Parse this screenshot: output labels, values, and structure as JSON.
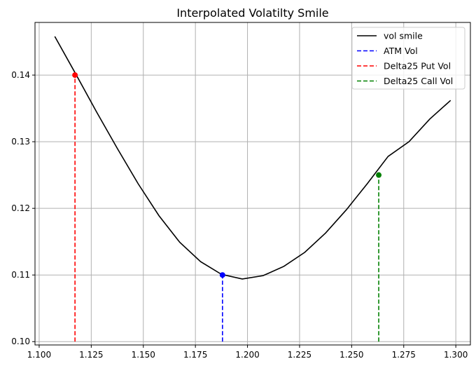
{
  "chart_data": {
    "type": "line",
    "title": "Interpolated Volatilty Smile",
    "xlabel": "",
    "ylabel": "",
    "xlim": [
      1.098,
      1.307
    ],
    "ylim": [
      0.0995,
      0.1479
    ],
    "grid": true,
    "legend_position": "top-right",
    "xticks": [
      "1.100",
      "1.125",
      "1.150",
      "1.175",
      "1.200",
      "1.225",
      "1.250",
      "1.275",
      "1.300"
    ],
    "yticks": [
      "0.10",
      "0.11",
      "0.12",
      "0.13",
      "0.14"
    ],
    "series": [
      {
        "name": "vol smile",
        "color": "#000000",
        "style": "solid",
        "x": [
          1.1075,
          1.1175,
          1.1275,
          1.1375,
          1.1475,
          1.1575,
          1.1675,
          1.1775,
          1.1875,
          1.1975,
          1.2075,
          1.2175,
          1.2275,
          1.2375,
          1.2475,
          1.2575,
          1.2675,
          1.2775,
          1.2875,
          1.2975
        ],
        "y": [
          0.1458,
          0.1402,
          0.1345,
          0.129,
          0.1237,
          0.1189,
          0.1149,
          0.112,
          0.1101,
          0.1094,
          0.1099,
          0.1113,
          0.1134,
          0.1163,
          0.1198,
          0.1237,
          0.1278,
          0.13,
          0.1334,
          0.1362
        ]
      }
    ],
    "markers": [
      {
        "name": "ATM Vol",
        "color": "#0000ff",
        "x": 1.188,
        "y": 0.11
      },
      {
        "name": "Delta25 Put Vol",
        "color": "#ff0000",
        "x": 1.1172,
        "y": 0.14
      },
      {
        "name": "Delta25 Call Vol",
        "color": "#008000",
        "x": 1.263,
        "y": 0.125
      }
    ],
    "legend": [
      "vol smile",
      "ATM Vol",
      "Delta25 Put Vol",
      "Delta25 Call Vol"
    ],
    "vline_base": 0.1
  }
}
